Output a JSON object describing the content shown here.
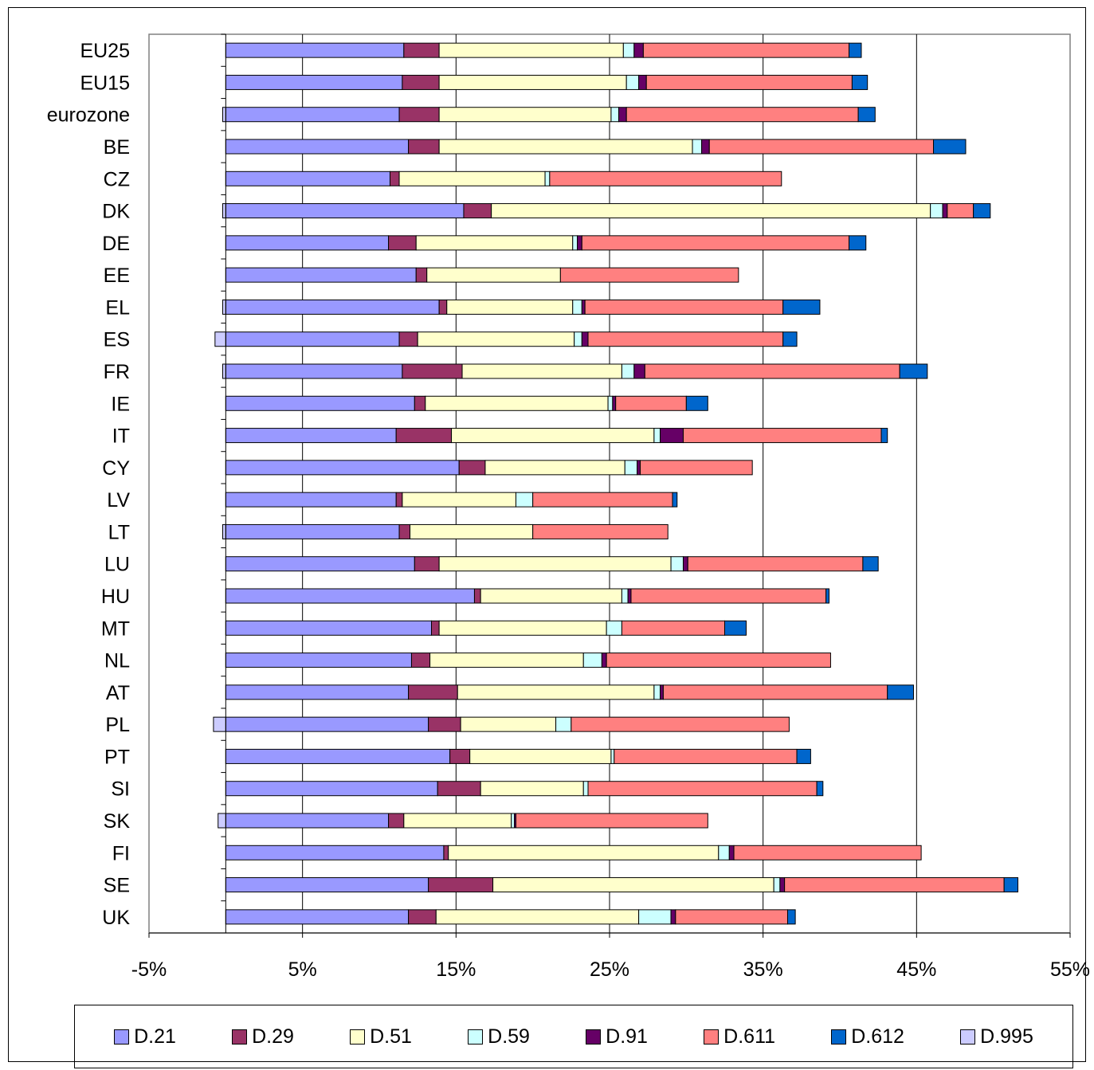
{
  "chart_data": {
    "type": "bar",
    "orientation": "horizontal",
    "stacked": true,
    "categories": [
      "EU25",
      "EU15",
      "eurozone",
      "BE",
      "CZ",
      "DK",
      "DE",
      "EE",
      "EL",
      "ES",
      "FR",
      "IE",
      "IT",
      "CY",
      "LV",
      "LT",
      "LU",
      "HU",
      "MT",
      "NL",
      "AT",
      "PL",
      "PT",
      "SI",
      "SK",
      "FI",
      "SE",
      "UK"
    ],
    "xlim": [
      -5,
      55
    ],
    "xticks": [
      -5,
      5,
      15,
      25,
      35,
      45,
      55
    ],
    "tick_format": "{v}%",
    "grid": {
      "vertical": true,
      "horizontal": false
    },
    "legend_position": "bottom",
    "series": [
      {
        "name": "D.21",
        "color": "#9999ff",
        "values": [
          11.6,
          11.5,
          11.3,
          11.9,
          10.7,
          15.5,
          10.6,
          12.4,
          13.9,
          11.3,
          11.5,
          12.3,
          11.1,
          15.2,
          11.1,
          11.3,
          12.3,
          16.2,
          13.4,
          12.1,
          11.9,
          13.2,
          14.6,
          13.8,
          10.6,
          14.2,
          13.2,
          11.9
        ]
      },
      {
        "name": "D.29",
        "color": "#993366",
        "values": [
          2.3,
          2.4,
          2.6,
          2.0,
          0.6,
          1.8,
          1.8,
          0.7,
          0.5,
          1.2,
          3.9,
          0.7,
          3.6,
          1.7,
          0.4,
          0.7,
          1.6,
          0.4,
          0.5,
          1.2,
          3.2,
          2.1,
          1.3,
          2.8,
          1.0,
          0.3,
          4.2,
          1.8
        ]
      },
      {
        "name": "D.51",
        "color": "#ffffcc",
        "values": [
          12.0,
          12.2,
          11.2,
          16.5,
          9.5,
          28.6,
          10.2,
          8.7,
          8.2,
          10.2,
          10.4,
          11.9,
          13.2,
          9.1,
          7.4,
          8.0,
          15.1,
          9.2,
          10.9,
          10.0,
          12.8,
          6.2,
          9.2,
          6.7,
          7.0,
          17.6,
          18.3,
          13.2
        ]
      },
      {
        "name": "D.59",
        "color": "#ccffff",
        "values": [
          0.7,
          0.8,
          0.5,
          0.6,
          0.3,
          0.8,
          0.3,
          0,
          0.6,
          0.5,
          0.8,
          0.3,
          0.4,
          0.8,
          1.1,
          0,
          0.8,
          0.4,
          1.0,
          1.2,
          0.4,
          1.0,
          0.2,
          0.3,
          0.2,
          0.7,
          0.4,
          2.1
        ]
      },
      {
        "name": "D.91",
        "color": "#660066",
        "values": [
          0.6,
          0.5,
          0.5,
          0.5,
          0,
          0.3,
          0.3,
          0,
          0.2,
          0.4,
          0.7,
          0.2,
          1.5,
          0.2,
          0,
          0,
          0.3,
          0.2,
          0,
          0.3,
          0.2,
          0,
          0,
          0,
          0.1,
          0.3,
          0.3,
          0.3
        ]
      },
      {
        "name": "D.611",
        "color": "#ff8080",
        "values": [
          13.4,
          13.4,
          15.1,
          14.6,
          15.1,
          1.7,
          17.4,
          11.6,
          12.9,
          12.7,
          16.6,
          4.6,
          12.9,
          7.3,
          9.1,
          8.8,
          11.4,
          12.7,
          6.7,
          14.6,
          14.6,
          14.2,
          11.9,
          14.9,
          12.5,
          12.2,
          14.3,
          7.3
        ]
      },
      {
        "name": "D.612",
        "color": "#0066cc",
        "values": [
          0.8,
          1.0,
          1.1,
          2.1,
          0,
          1.1,
          1.1,
          0,
          2.4,
          0.9,
          1.8,
          1.4,
          0.4,
          0,
          0.3,
          0,
          1.0,
          0.2,
          1.4,
          0,
          1.7,
          0,
          0.9,
          0.4,
          0,
          0,
          0.9,
          0.5
        ]
      },
      {
        "name": "D.995",
        "color": "#ccccff",
        "values": [
          0,
          0,
          -0.2,
          0,
          0,
          -0.2,
          0,
          0,
          -0.2,
          -0.7,
          -0.2,
          0,
          0,
          0,
          0,
          -0.2,
          0,
          0,
          0,
          0,
          0,
          -0.8,
          0,
          0,
          -0.5,
          0,
          0,
          0
        ]
      }
    ]
  }
}
